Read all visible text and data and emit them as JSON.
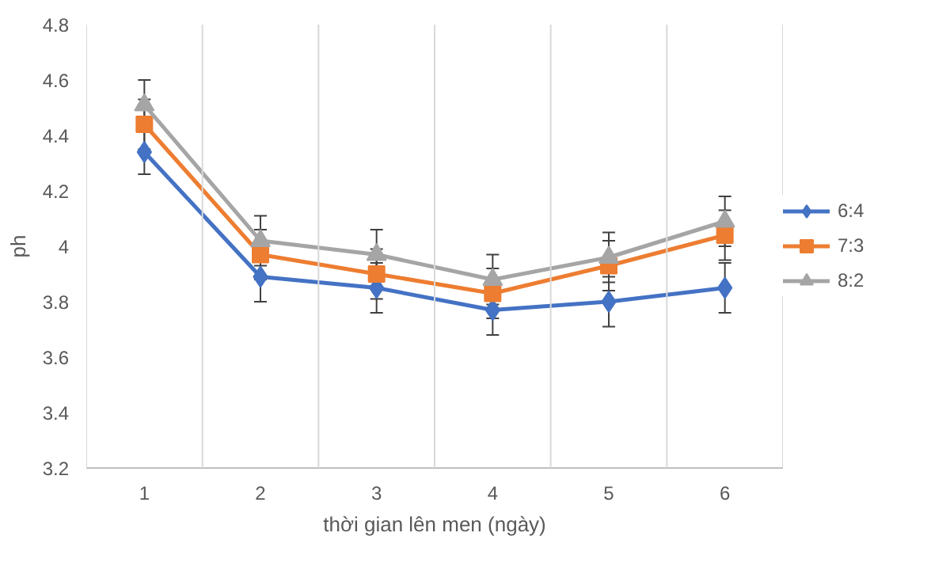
{
  "chart_data": {
    "type": "line",
    "xlabel": "thời gian lên men (ngày)",
    "ylabel": "ph",
    "categories": [
      "1",
      "2",
      "3",
      "4",
      "5",
      "6"
    ],
    "series": [
      {
        "name": "6:4",
        "color": "#4472c4",
        "marker": "diamond",
        "values": [
          4.34,
          3.89,
          3.85,
          3.77,
          3.8,
          3.85
        ],
        "errors": [
          0.08,
          0.09,
          0.09,
          0.09,
          0.09,
          0.09
        ]
      },
      {
        "name": "7:3",
        "color": "#ed7d31",
        "marker": "square",
        "values": [
          4.44,
          3.97,
          3.9,
          3.83,
          3.93,
          4.04
        ],
        "errors": [
          0.09,
          0.09,
          0.09,
          0.09,
          0.09,
          0.09
        ]
      },
      {
        "name": "8:2",
        "color": "#a5a5a5",
        "marker": "triangle",
        "values": [
          4.51,
          4.02,
          3.97,
          3.88,
          3.96,
          4.09
        ],
        "errors": [
          0.09,
          0.09,
          0.09,
          0.09,
          0.09,
          0.09
        ]
      }
    ],
    "ylim": [
      3.2,
      4.8
    ],
    "yticks": [
      3.2,
      3.4,
      3.6,
      3.8,
      4,
      4.2,
      4.4,
      4.6,
      4.8
    ],
    "grid": "x",
    "legend": "right",
    "line_style": "solid"
  }
}
